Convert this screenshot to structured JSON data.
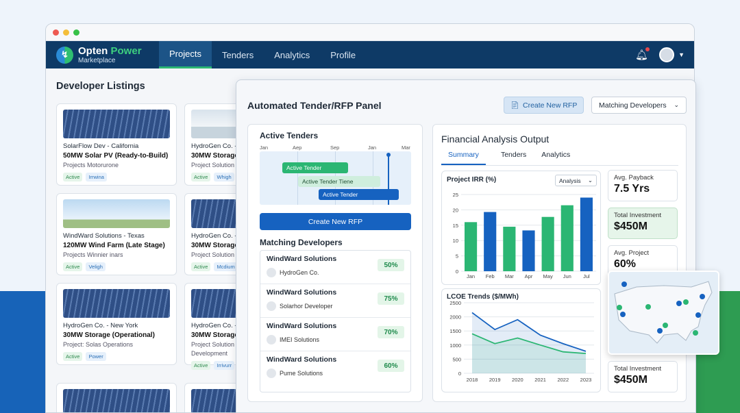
{
  "app": {
    "name_part1": "Opten",
    "name_part2": "Power",
    "sub": "Marketplace"
  },
  "nav": {
    "tabs": [
      "Projects",
      "Tenders",
      "Analytics",
      "Profile"
    ],
    "active": "Projects"
  },
  "listings": {
    "title": "Developer Listings",
    "cards": [
      {
        "l1": "SolarFlow Dev - California",
        "l2": "50MW Solar PV (Ready-to-Build)",
        "l3": "Projects Motorurone",
        "tags": [
          "Active",
          "Irrwina"
        ],
        "img": "solar"
      },
      {
        "l1": "HydroGen Co. -",
        "l2": "30MW Storage",
        "l3": "Project Solution",
        "tags": [
          "Active",
          "Whigh"
        ],
        "img": "storage"
      },
      {
        "l1": "WindWard Solutions - Texas",
        "l2": "120MW Wind Farm (Late Stage)",
        "l3": "Projects Winnier inars",
        "tags": [
          "Active",
          "Veligh"
        ],
        "img": "wind"
      },
      {
        "l1": "HydroGen Co. -",
        "l2": "30MW Storage",
        "l3": "Project Solution",
        "tags": [
          "Active",
          "Mcdium"
        ],
        "img": "solar"
      },
      {
        "l1": "HydroGen Co. - New York",
        "l2": "30MW Storage (Operational)",
        "l3": "Project: Solas Operations",
        "tags": [
          "Active",
          "Power"
        ],
        "img": "solar"
      },
      {
        "l1": "HydroGen Co. -",
        "l2": "30MW Storage",
        "l3": "Project Solution",
        "l4": "Development",
        "tags": [
          "Active",
          "Irrivurr"
        ],
        "img": "solar"
      }
    ]
  },
  "panel": {
    "title": "Automated Tender/RFP Panel",
    "create_btn": "Create New RFP",
    "dropdown": "Matching Developers"
  },
  "tenders": {
    "title": "Active Tenders",
    "months": [
      "Jan",
      "Aep",
      "Sep",
      "Jan",
      "Mar"
    ],
    "bars": [
      "Active Tender",
      "Active Tender Tiene",
      "Active Tender"
    ],
    "create": "Create New RFP"
  },
  "matching": {
    "title": "Matching Developers",
    "rows": [
      {
        "name": "WindWard Solutions",
        "sub": "HydroGen Co.",
        "pct": "50%"
      },
      {
        "name": "WindWard Solutions",
        "sub": "Solarhor Developer",
        "pct": "75%"
      },
      {
        "name": "WindWard Solutions",
        "sub": "IMEI Solutions",
        "pct": "70%"
      },
      {
        "name": "WindWard Solutions",
        "sub": "Pume Solutions",
        "pct": "60%"
      }
    ]
  },
  "financial": {
    "title": "Financial Analysis Output",
    "tabs": [
      "Summary",
      "Tenders",
      "Analytics"
    ],
    "active": "Summary",
    "irr_title": "Project IRR (%)",
    "irr_select": "Analysis",
    "lcoe_title": "LCOE Trends ($/MWh)"
  },
  "kpis": [
    {
      "label": "Avg. Payback",
      "value": "7.5 Yrs"
    },
    {
      "label": "Total Investment",
      "value": "$450M"
    },
    {
      "label": "Avg. Project",
      "value": "60%"
    },
    {
      "label": "Total Investment",
      "value": "$450M"
    }
  ],
  "chart_data": [
    {
      "type": "bar",
      "title": "Project IRR (%)",
      "categories": [
        "Jan",
        "Feb",
        "Mar",
        "Apr",
        "May",
        "Jun",
        "Jul"
      ],
      "values": [
        16,
        19.3,
        14.5,
        13.3,
        17.7,
        21.5,
        24
      ],
      "ylim": [
        0,
        25
      ],
      "yticks": [
        0,
        5,
        10,
        15,
        20,
        25
      ],
      "colors": [
        "#2bb673",
        "#1662c0",
        "#2bb673",
        "#1662c0",
        "#2bb673",
        "#2bb673",
        "#1662c0"
      ]
    },
    {
      "type": "line",
      "title": "LCOE Trends ($/MWh)",
      "x": [
        "2018",
        "2019",
        "2020",
        "2021",
        "2022",
        "2023"
      ],
      "ylim": [
        0,
        2500
      ],
      "yticks": [
        0,
        500,
        1000,
        1500,
        2000,
        2500
      ],
      "series": [
        {
          "values": [
            2150,
            1550,
            1900,
            1350,
            1050,
            780
          ],
          "color": "#1662c0"
        },
        {
          "values": [
            1400,
            1050,
            1250,
            1000,
            760,
            700
          ],
          "color": "#2bb673"
        }
      ]
    }
  ]
}
